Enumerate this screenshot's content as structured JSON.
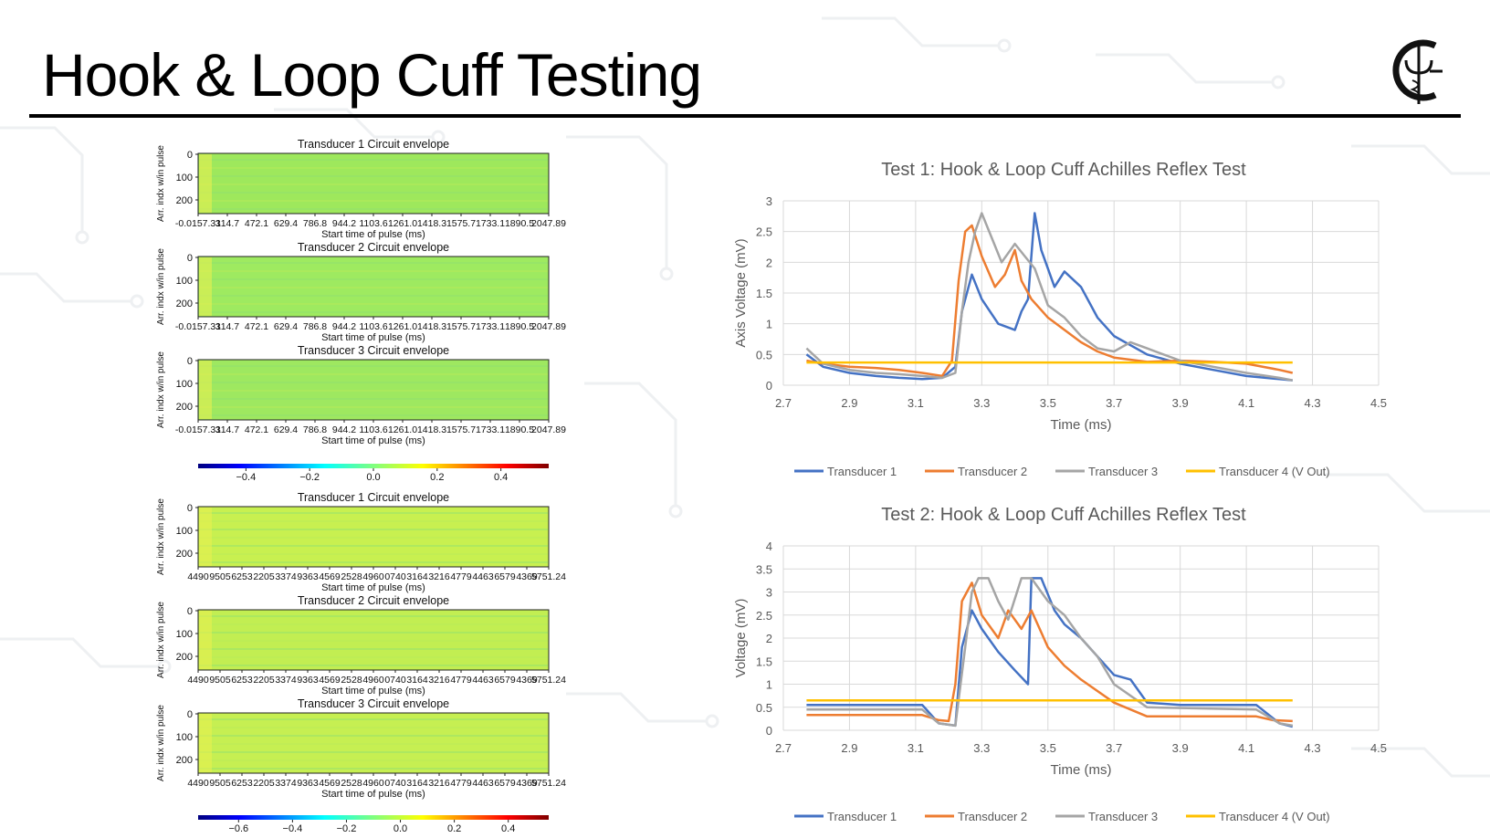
{
  "slide": {
    "title": "Hook & Loop Cuff Testing"
  },
  "heatmap_groups": [
    {
      "colorbar_ticks": [
        "−0.4",
        "−0.2",
        "0.0",
        "0.2",
        "0.4"
      ],
      "panels": [
        {
          "title": "Transducer 1 Circuit envelope",
          "ylabel": "Arr. indx w/in pulse",
          "xlabel": "Start time of pulse (ms)",
          "yticks": [
            "0",
            "100",
            "200"
          ],
          "xticks": [
            "-0.0157.31",
            "314.7",
            "472.1",
            "629.4",
            "786.8",
            "944.2",
            "1103.6",
            "1261.0",
            "1418.3",
            "1575.7",
            "1733.1",
            "1890.5",
            "2047.89"
          ],
          "fill": "#9ee85c"
        },
        {
          "title": "Transducer 2 Circuit envelope",
          "ylabel": "Arr. indx w/in pulse",
          "xlabel": "Start time of pulse (ms)",
          "yticks": [
            "0",
            "100",
            "200"
          ],
          "xticks": [
            "-0.0157.31",
            "314.7",
            "472.1",
            "629.4",
            "786.8",
            "944.2",
            "1103.6",
            "1261.0",
            "1418.3",
            "1575.7",
            "1733.1",
            "1890.5",
            "2047.89"
          ],
          "fill": "#9eea60"
        },
        {
          "title": "Transducer 3 Circuit envelope",
          "ylabel": "Arr. indx w/in pulse",
          "xlabel": "Start time of pulse (ms)",
          "yticks": [
            "0",
            "100",
            "200"
          ],
          "xticks": [
            "-0.0157.31",
            "314.7",
            "472.1",
            "629.4",
            "786.8",
            "944.2",
            "1103.6",
            "1261.0",
            "1418.3",
            "1575.7",
            "1733.1",
            "1890.5",
            "2047.89"
          ],
          "fill": "#9ee860"
        }
      ]
    },
    {
      "colorbar_ticks": [
        "−0.6",
        "−0.4",
        "−0.2",
        "0.0",
        "0.2",
        "0.4"
      ],
      "panels": [
        {
          "title": "Transducer 1 Circuit envelope",
          "ylabel": "Arr. indx w/in pulse",
          "xlabel": "Start time of pulse (ms)",
          "yticks": [
            "0",
            "100",
            "200"
          ],
          "xticks": [
            "4490",
            "9505",
            "6253",
            "2205",
            "3374",
            "9363",
            "4569",
            "2528",
            "4960",
            "0740",
            "3164",
            "3216",
            "4779",
            "4463",
            "6579",
            "4369",
            "5751.24"
          ],
          "fill": "#c8f050"
        },
        {
          "title": "Transducer 2 Circuit envelope",
          "ylabel": "Arr. indx w/in pulse",
          "xlabel": "Start time of pulse (ms)",
          "yticks": [
            "0",
            "100",
            "200"
          ],
          "xticks": [
            "4490",
            "9505",
            "6253",
            "2205",
            "3374",
            "9363",
            "4569",
            "2528",
            "4960",
            "0740",
            "3164",
            "3216",
            "4779",
            "4463",
            "6579",
            "4369",
            "5751.24"
          ],
          "fill": "#c2ee52"
        },
        {
          "title": "Transducer 3 Circuit envelope",
          "ylabel": "Arr. indx w/in pulse",
          "xlabel": "Start time of pulse (ms)",
          "yticks": [
            "0",
            "100",
            "200"
          ],
          "xticks": [
            "4490",
            "9505",
            "6253",
            "2205",
            "3374",
            "9363",
            "4569",
            "2528",
            "4960",
            "0740",
            "3164",
            "3216",
            "4779",
            "4463",
            "6579",
            "4369",
            "5751.24"
          ],
          "fill": "#c6ef52"
        }
      ]
    }
  ],
  "chart_data": [
    {
      "type": "line",
      "title": "Test 1: Hook & Loop Cuff Achilles Reflex Test",
      "xlabel": "Time (ms)",
      "ylabel": "Axis Voltage (mV)",
      "xlim": [
        2.7,
        4.5
      ],
      "ylim": [
        0,
        3
      ],
      "xticks": [
        "2.7",
        "2.9",
        "3.1",
        "3.3",
        "3.5",
        "3.7",
        "3.9",
        "4.1",
        "4.3",
        "4.5"
      ],
      "yticks": [
        "0",
        "0.5",
        "1",
        "1.5",
        "2",
        "2.5",
        "3"
      ],
      "grid": true,
      "legend": "bottom",
      "series": [
        {
          "name": "Transducer 1",
          "color": "#4472c4",
          "x": [
            2.77,
            2.82,
            2.9,
            2.98,
            3.05,
            3.12,
            3.18,
            3.22,
            3.24,
            3.27,
            3.3,
            3.35,
            3.4,
            3.42,
            3.44,
            3.46,
            3.48,
            3.52,
            3.55,
            3.6,
            3.65,
            3.7,
            3.8,
            3.9,
            4.0,
            4.1,
            4.2,
            4.24
          ],
          "y": [
            0.5,
            0.3,
            0.2,
            0.15,
            0.12,
            0.1,
            0.12,
            0.3,
            1.2,
            1.8,
            1.4,
            1.0,
            0.9,
            1.2,
            1.4,
            2.8,
            2.2,
            1.6,
            1.85,
            1.6,
            1.1,
            0.8,
            0.5,
            0.35,
            0.25,
            0.15,
            0.1,
            0.08
          ]
        },
        {
          "name": "Transducer 2",
          "color": "#ed7d31",
          "x": [
            2.77,
            2.82,
            2.9,
            2.98,
            3.05,
            3.12,
            3.18,
            3.21,
            3.23,
            3.25,
            3.27,
            3.3,
            3.34,
            3.37,
            3.4,
            3.42,
            3.45,
            3.5,
            3.55,
            3.6,
            3.65,
            3.7,
            3.8,
            3.9,
            4.0,
            4.1,
            4.2,
            4.24
          ],
          "y": [
            0.4,
            0.35,
            0.3,
            0.28,
            0.25,
            0.2,
            0.15,
            0.4,
            1.7,
            2.5,
            2.6,
            2.1,
            1.6,
            1.8,
            2.2,
            1.7,
            1.4,
            1.1,
            0.9,
            0.7,
            0.55,
            0.45,
            0.38,
            0.4,
            0.38,
            0.35,
            0.25,
            0.2
          ]
        },
        {
          "name": "Transducer 3",
          "color": "#a5a5a5",
          "x": [
            2.77,
            2.82,
            2.9,
            2.98,
            3.05,
            3.12,
            3.18,
            3.22,
            3.24,
            3.26,
            3.28,
            3.3,
            3.33,
            3.36,
            3.4,
            3.43,
            3.46,
            3.5,
            3.55,
            3.6,
            3.65,
            3.7,
            3.75,
            3.8,
            3.9,
            4.0,
            4.1,
            4.2,
            4.24
          ],
          "y": [
            0.6,
            0.35,
            0.25,
            0.2,
            0.18,
            0.15,
            0.12,
            0.2,
            1.2,
            2.0,
            2.5,
            2.8,
            2.4,
            2.0,
            2.3,
            2.1,
            1.9,
            1.3,
            1.1,
            0.8,
            0.6,
            0.55,
            0.7,
            0.6,
            0.4,
            0.3,
            0.2,
            0.12,
            0.08
          ]
        },
        {
          "name": "Transducer 4 (V Out)",
          "color": "#ffc000",
          "x": [
            2.77,
            4.24
          ],
          "y": [
            0.37,
            0.37
          ]
        }
      ]
    },
    {
      "type": "line",
      "title": "Test 2: Hook & Loop Cuff Achilles Reflex Test",
      "xlabel": "Time (ms)",
      "ylabel": "Voltage (mV)",
      "xlim": [
        2.7,
        4.5
      ],
      "ylim": [
        0,
        4
      ],
      "xticks": [
        "2.7",
        "2.9",
        "3.1",
        "3.3",
        "3.5",
        "3.7",
        "3.9",
        "4.1",
        "4.3",
        "4.5"
      ],
      "yticks": [
        "0",
        "0.5",
        "1",
        "1.5",
        "2",
        "2.5",
        "3",
        "3.5",
        "4"
      ],
      "grid": true,
      "legend": "bottom",
      "series": [
        {
          "name": "Transducer 1",
          "color": "#4472c4",
          "x": [
            2.77,
            3.12,
            3.17,
            3.22,
            3.24,
            3.27,
            3.3,
            3.35,
            3.4,
            3.44,
            3.45,
            3.48,
            3.52,
            3.55,
            3.6,
            3.65,
            3.7,
            3.75,
            3.8,
            3.9,
            4.13,
            4.2,
            4.24
          ],
          "y": [
            0.55,
            0.55,
            0.15,
            0.1,
            1.8,
            2.6,
            2.2,
            1.7,
            1.3,
            1.0,
            3.3,
            3.3,
            2.6,
            2.3,
            2.0,
            1.6,
            1.2,
            1.1,
            0.6,
            0.55,
            0.55,
            0.15,
            0.08
          ]
        },
        {
          "name": "Transducer 2",
          "color": "#ed7d31",
          "x": [
            2.77,
            3.12,
            3.17,
            3.2,
            3.22,
            3.24,
            3.27,
            3.3,
            3.35,
            3.38,
            3.42,
            3.45,
            3.5,
            3.55,
            3.6,
            3.7,
            3.8,
            4.13,
            4.18,
            4.24
          ],
          "y": [
            0.33,
            0.33,
            0.22,
            0.2,
            1.0,
            2.8,
            3.2,
            2.5,
            2.0,
            2.6,
            2.2,
            2.6,
            1.8,
            1.4,
            1.1,
            0.6,
            0.3,
            0.3,
            0.22,
            0.2
          ]
        },
        {
          "name": "Transducer 3",
          "color": "#a5a5a5",
          "x": [
            2.77,
            3.12,
            3.17,
            3.22,
            3.25,
            3.27,
            3.29,
            3.32,
            3.35,
            3.38,
            3.42,
            3.45,
            3.5,
            3.55,
            3.6,
            3.65,
            3.7,
            3.8,
            4.13,
            4.2,
            4.24
          ],
          "y": [
            0.45,
            0.45,
            0.15,
            0.1,
            1.8,
            3.0,
            3.3,
            3.3,
            2.8,
            2.4,
            3.3,
            3.3,
            2.8,
            2.5,
            2.0,
            1.6,
            1.0,
            0.5,
            0.45,
            0.15,
            0.1
          ]
        },
        {
          "name": "Transducer 4 (V Out)",
          "color": "#ffc000",
          "x": [
            2.77,
            4.24
          ],
          "y": [
            0.65,
            0.65
          ]
        }
      ]
    }
  ]
}
